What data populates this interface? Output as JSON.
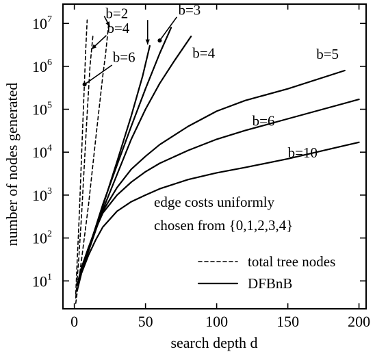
{
  "chart_data": {
    "type": "line",
    "xlabel": "search depth d",
    "ylabel": "number of nodes generated",
    "xlim": [
      -8,
      205
    ],
    "ylim_log10": [
      0.35,
      7.45
    ],
    "log_y": true,
    "grid": false,
    "x_ticks": [
      0,
      50,
      100,
      150,
      200
    ],
    "y_ticks": [
      {
        "base": "10",
        "exp": "1",
        "value": 10
      },
      {
        "base": "10",
        "exp": "2",
        "value": 100
      },
      {
        "base": "10",
        "exp": "3",
        "value": 1000
      },
      {
        "base": "10",
        "exp": "4",
        "value": 10000
      },
      {
        "base": "10",
        "exp": "5",
        "value": 100000
      },
      {
        "base": "10",
        "exp": "6",
        "value": 1000000
      },
      {
        "base": "10",
        "exp": "7",
        "value": 10000000
      }
    ],
    "legend": {
      "placement": "bottom-right",
      "entries": [
        {
          "label": "total tree nodes",
          "style": "dashed"
        },
        {
          "label": "DFBnB",
          "style": "solid"
        }
      ]
    },
    "annotation": {
      "line1": "edge costs uniformly",
      "line2": "chosen from {0,1,2,3,4}"
    },
    "series": [
      {
        "name": "b=2",
        "style": "solid",
        "points": [
          [
            2,
            8
          ],
          [
            5,
            17
          ],
          [
            10,
            50
          ],
          [
            15,
            160
          ],
          [
            20,
            550
          ],
          [
            30,
            6000
          ],
          [
            40,
            70000
          ],
          [
            48,
            600000
          ],
          [
            53,
            3000000
          ]
        ]
      },
      {
        "name": "b=3",
        "style": "solid",
        "points": [
          [
            2,
            8
          ],
          [
            5,
            18
          ],
          [
            10,
            55
          ],
          [
            15,
            180
          ],
          [
            20,
            600
          ],
          [
            30,
            5000
          ],
          [
            40,
            40000
          ],
          [
            50,
            300000
          ],
          [
            60,
            2000000
          ],
          [
            68,
            8000000
          ]
        ]
      },
      {
        "name": "b=4",
        "style": "solid",
        "points": [
          [
            2,
            8
          ],
          [
            5,
            18
          ],
          [
            10,
            50
          ],
          [
            15,
            150
          ],
          [
            20,
            450
          ],
          [
            30,
            3000
          ],
          [
            40,
            20000
          ],
          [
            50,
            100000
          ],
          [
            60,
            400000
          ],
          [
            70,
            1300000
          ],
          [
            82,
            5000000
          ]
        ]
      },
      {
        "name": "b=5",
        "style": "solid",
        "points": [
          [
            2,
            8
          ],
          [
            5,
            20
          ],
          [
            10,
            60
          ],
          [
            15,
            170
          ],
          [
            20,
            420
          ],
          [
            30,
            1500
          ],
          [
            40,
            4000
          ],
          [
            50,
            8000
          ],
          [
            60,
            15000
          ],
          [
            80,
            40000
          ],
          [
            100,
            90000
          ],
          [
            120,
            160000
          ],
          [
            150,
            300000
          ],
          [
            190,
            800000
          ]
        ]
      },
      {
        "name": "b=6",
        "style": "solid",
        "points": [
          [
            2,
            8
          ],
          [
            5,
            20
          ],
          [
            10,
            60
          ],
          [
            15,
            160
          ],
          [
            20,
            380
          ],
          [
            30,
            1000
          ],
          [
            40,
            2000
          ],
          [
            50,
            3500
          ],
          [
            60,
            5500
          ],
          [
            80,
            11000
          ],
          [
            100,
            20000
          ],
          [
            120,
            32000
          ],
          [
            150,
            60000
          ],
          [
            200,
            170000
          ]
        ]
      },
      {
        "name": "b=10",
        "style": "solid",
        "points": [
          [
            2,
            6
          ],
          [
            5,
            15
          ],
          [
            10,
            40
          ],
          [
            15,
            90
          ],
          [
            20,
            180
          ],
          [
            30,
            420
          ],
          [
            40,
            700
          ],
          [
            50,
            1000
          ],
          [
            60,
            1400
          ],
          [
            80,
            2300
          ],
          [
            100,
            3300
          ],
          [
            120,
            4400
          ],
          [
            150,
            7000
          ],
          [
            200,
            17000
          ]
        ]
      },
      {
        "name": "b=2",
        "style": "dashed",
        "points": [
          [
            1,
            3
          ],
          [
            5,
            30
          ],
          [
            10,
            600
          ],
          [
            15,
            20000
          ],
          [
            20,
            600000
          ],
          [
            22,
            2000000
          ],
          [
            24,
            9000000
          ]
        ]
      },
      {
        "name": "b=4",
        "style": "dashed",
        "points": [
          [
            1,
            4
          ],
          [
            3,
            30
          ],
          [
            5,
            300
          ],
          [
            7,
            5000
          ],
          [
            9,
            80000
          ],
          [
            11,
            1000000
          ],
          [
            13,
            5000000
          ]
        ]
      },
      {
        "name": "b=6",
        "style": "dashed",
        "points": [
          [
            1,
            5
          ],
          [
            2,
            30
          ],
          [
            3,
            150
          ],
          [
            4,
            1000
          ],
          [
            5,
            7000
          ],
          [
            6,
            50000
          ],
          [
            7,
            350000
          ],
          [
            8,
            2500000
          ],
          [
            9,
            12000000
          ]
        ]
      }
    ],
    "curve_labels": [
      {
        "text": "b=2",
        "series": 0,
        "x": 22,
        "log10y": 7.12
      },
      {
        "text": "b=3",
        "series": 1,
        "x": 73,
        "log10y": 7.2
      },
      {
        "text": "b=4",
        "series": 2,
        "x": 83,
        "log10y": 6.2
      },
      {
        "text": "b=5",
        "series": 3,
        "x": 170,
        "log10y": 6.17
      },
      {
        "text": "b=6",
        "series": 4,
        "x": 125,
        "log10y": 4.62
      },
      {
        "text": "b=10",
        "series": 5,
        "x": 150,
        "log10y": 3.88
      },
      {
        "text": "b=4",
        "series": 7,
        "x": 23,
        "log10y": 6.78
      },
      {
        "text": "b=6",
        "series": 8,
        "x": 27,
        "log10y": 6.1
      }
    ]
  }
}
